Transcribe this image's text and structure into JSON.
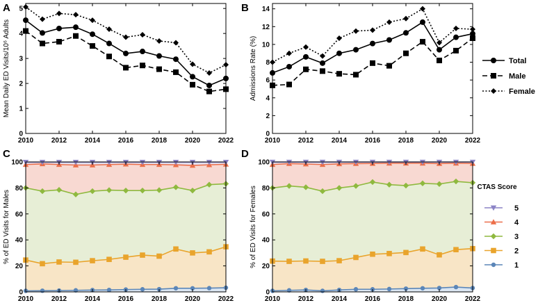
{
  "chart_data": [
    {
      "id": "A",
      "type": "line",
      "panel_label": "A",
      "ylabel": "Mean Daily ED Visits/10⁶ Adults",
      "x": [
        2010,
        2011,
        2012,
        2013,
        2014,
        2015,
        2016,
        2017,
        2018,
        2019,
        2020,
        2021,
        2022
      ],
      "xticks": [
        2010,
        2012,
        2014,
        2016,
        2018,
        2020,
        2022
      ],
      "yticks": [
        0,
        1,
        2,
        3,
        4,
        5
      ],
      "xlim": [
        2010,
        2022
      ],
      "ylim": [
        0,
        5.2
      ],
      "series": [
        {
          "name": "Total",
          "values": [
            4.53,
            4.02,
            4.2,
            4.25,
            3.97,
            3.6,
            3.2,
            3.28,
            3.1,
            2.97,
            2.27,
            1.92,
            2.2
          ]
        },
        {
          "name": "Male",
          "values": [
            4.1,
            3.6,
            3.67,
            3.9,
            3.5,
            3.08,
            2.63,
            2.72,
            2.57,
            2.45,
            1.95,
            1.68,
            1.77
          ]
        },
        {
          "name": "Female",
          "values": [
            5.06,
            4.57,
            4.8,
            4.75,
            4.53,
            4.17,
            3.85,
            3.95,
            3.7,
            3.63,
            2.77,
            2.42,
            2.75
          ]
        }
      ]
    },
    {
      "id": "B",
      "type": "line",
      "panel_label": "B",
      "ylabel": "Admissions Rate (%)",
      "x": [
        2010,
        2011,
        2012,
        2013,
        2014,
        2015,
        2016,
        2017,
        2018,
        2019,
        2020,
        2021,
        2022
      ],
      "xticks": [
        2010,
        2012,
        2014,
        2016,
        2018,
        2020,
        2022
      ],
      "yticks": [
        0,
        2,
        4,
        6,
        8,
        10,
        12,
        14
      ],
      "xlim": [
        2010,
        2022
      ],
      "ylim": [
        0,
        14.6
      ],
      "series": [
        {
          "name": "Total",
          "values": [
            6.8,
            7.5,
            8.6,
            7.9,
            9.0,
            9.4,
            10.1,
            10.5,
            11.3,
            12.5,
            9.4,
            10.8,
            11.2
          ]
        },
        {
          "name": "Male",
          "values": [
            5.4,
            5.5,
            7.2,
            7.0,
            6.7,
            6.6,
            7.9,
            7.6,
            9.0,
            10.3,
            8.2,
            9.3,
            10.7
          ]
        },
        {
          "name": "Female",
          "values": [
            8.0,
            9.0,
            9.7,
            8.7,
            10.7,
            11.5,
            11.6,
            12.5,
            12.9,
            14.0,
            10.2,
            11.8,
            11.7
          ]
        }
      ]
    },
    {
      "id": "C",
      "type": "area",
      "panel_label": "C",
      "ylabel": "% of ED Visits for Males",
      "x": [
        2010,
        2011,
        2012,
        2013,
        2014,
        2015,
        2016,
        2017,
        2018,
        2019,
        2020,
        2021,
        2022
      ],
      "xticks": [
        2010,
        2012,
        2014,
        2016,
        2018,
        2020,
        2022
      ],
      "yticks": [
        0,
        20,
        40,
        60,
        80,
        100
      ],
      "xlim": [
        2010,
        2022
      ],
      "ylim": [
        0,
        100
      ],
      "series": [
        {
          "name": "1",
          "values": [
            0.8,
            0.9,
            1.0,
            1.2,
            1.4,
            1.5,
            1.8,
            2.0,
            2.1,
            2.8,
            2.8,
            2.9,
            3.2
          ]
        },
        {
          "name": "2",
          "values": [
            24.5,
            21.7,
            23.0,
            22.8,
            24.0,
            25.0,
            26.7,
            28.3,
            27.5,
            33.0,
            30.0,
            30.8,
            34.7
          ]
        },
        {
          "name": "3",
          "values": [
            80.0,
            77.5,
            78.5,
            75.0,
            77.5,
            78.3,
            78.0,
            78.0,
            78.3,
            80.5,
            78.0,
            82.5,
            83.2
          ]
        },
        {
          "name": "4",
          "values": [
            98.0,
            98.5,
            98.0,
            97.6,
            97.6,
            98.0,
            98.3,
            98.0,
            98.0,
            97.8,
            97.3,
            97.8,
            98.2
          ]
        },
        {
          "name": "5",
          "values": [
            99.8,
            99.8,
            99.8,
            99.8,
            99.8,
            99.8,
            99.8,
            99.8,
            99.8,
            99.8,
            99.8,
            99.8,
            99.8
          ]
        }
      ]
    },
    {
      "id": "D",
      "type": "area",
      "panel_label": "D",
      "ylabel": "% of ED Visits for Females",
      "x": [
        2010,
        2011,
        2012,
        2013,
        2014,
        2015,
        2016,
        2017,
        2018,
        2019,
        2020,
        2021,
        2022
      ],
      "xticks": [
        2010,
        2012,
        2014,
        2016,
        2018,
        2020,
        2022
      ],
      "yticks": [
        0,
        20,
        40,
        60,
        80,
        100
      ],
      "xlim": [
        2010,
        2022
      ],
      "ylim": [
        0,
        100
      ],
      "series": [
        {
          "name": "1",
          "values": [
            0.8,
            1.2,
            1.5,
            0.8,
            1.5,
            2.0,
            2.0,
            2.2,
            2.5,
            2.8,
            3.0,
            3.7,
            3.0
          ]
        },
        {
          "name": "2",
          "values": [
            23.7,
            23.5,
            23.8,
            23.5,
            24.0,
            26.5,
            29.0,
            29.5,
            30.3,
            33.0,
            28.5,
            32.5,
            33.3
          ]
        },
        {
          "name": "3",
          "values": [
            80.0,
            81.5,
            80.5,
            77.5,
            80.0,
            81.5,
            84.5,
            82.5,
            81.8,
            83.5,
            83.0,
            85.0,
            84.0
          ]
        },
        {
          "name": "4",
          "values": [
            98.0,
            98.7,
            98.4,
            98.0,
            98.5,
            98.7,
            98.8,
            99.0,
            99.0,
            99.0,
            98.7,
            99.0,
            98.8
          ]
        },
        {
          "name": "5",
          "values": [
            99.9,
            99.9,
            99.9,
            99.9,
            99.9,
            99.9,
            99.9,
            99.9,
            99.9,
            99.9,
            99.9,
            99.9,
            99.9
          ]
        }
      ]
    }
  ],
  "legend_lines": {
    "items": [
      "Total",
      "Male",
      "Female"
    ]
  },
  "legend_ctas": {
    "title": "CTAS Score",
    "items": [
      "5",
      "4",
      "3",
      "2",
      "1"
    ]
  },
  "colors": {
    "ctas_1": "#5b86b8",
    "ctas_2": "#e9a42c",
    "ctas_3": "#8fb93f",
    "ctas_4": "#ec6f4a",
    "ctas_5": "#8c84c6",
    "fill_1_2": "#f8e5c6",
    "fill_2_3": "#e7eed6",
    "fill_3_4": "#f8d9d2",
    "fill_4_5": "#e3e1f1"
  }
}
